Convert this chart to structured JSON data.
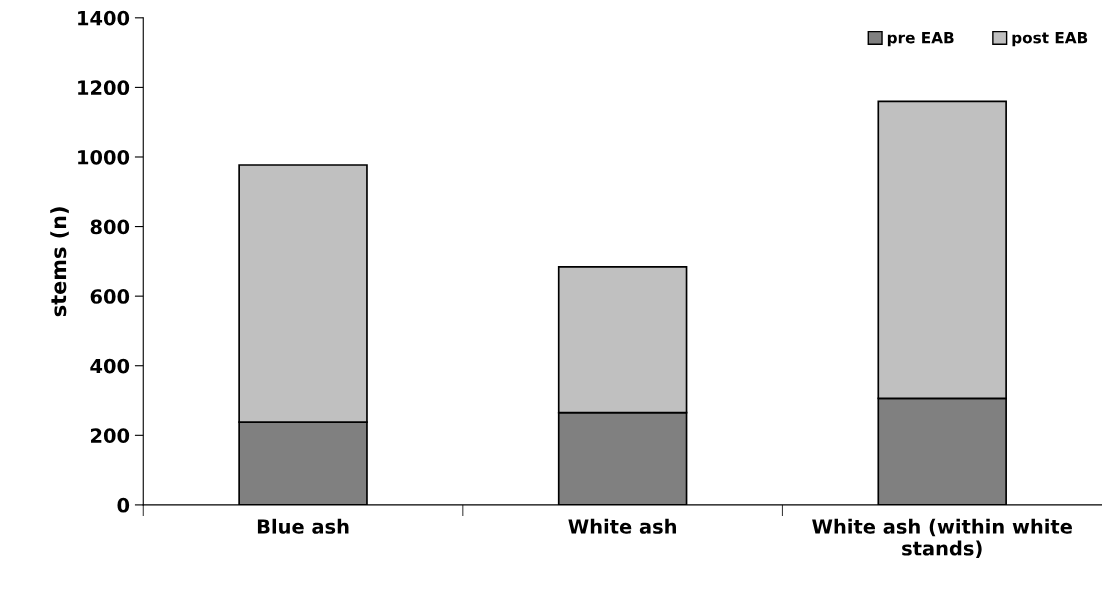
{
  "chart_data": {
    "type": "bar",
    "stacked": true,
    "ylabel": "stems (n)",
    "categories": [
      "Blue ash",
      "White ash",
      "White ash (within white\nstands)"
    ],
    "series": [
      {
        "name": "pre EAB",
        "color": "#808080",
        "values": [
          238,
          265,
          306
        ]
      },
      {
        "name": "post EAB",
        "color": "#c0c0c0",
        "values": [
          739,
          419,
          854
        ]
      }
    ],
    "ylim": [
      0,
      1400
    ],
    "yticks": [
      0,
      200,
      400,
      600,
      800,
      1000,
      1200,
      1400
    ],
    "grid": false,
    "legend": "top right"
  }
}
